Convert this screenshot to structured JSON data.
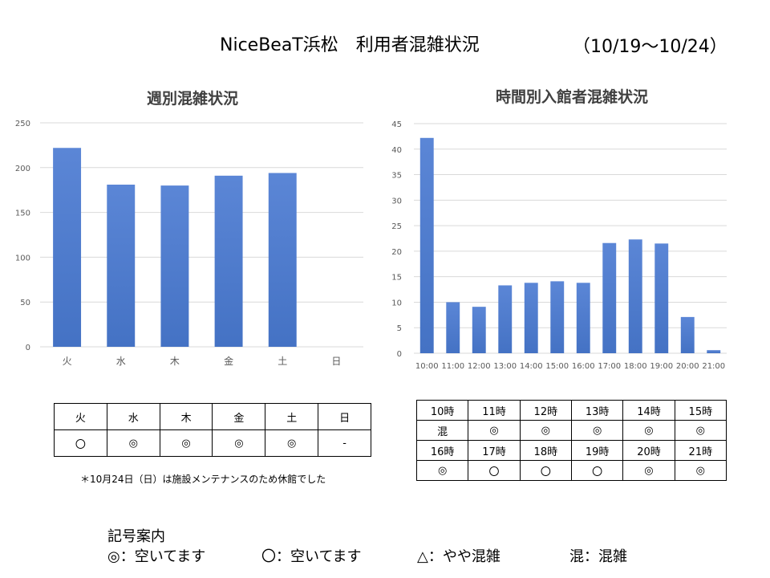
{
  "header": {
    "title": "NiceBeaT浜松　利用者混雑状況",
    "period": "（10/19～10/24）"
  },
  "colors": {
    "bar": "#4472c4",
    "bar_light": "#5b86d6",
    "grid": "#d9d9d9",
    "axis_text": "#595959"
  },
  "chart_data": [
    {
      "type": "bar",
      "title": "週別混雑状況",
      "categories": [
        "火",
        "水",
        "木",
        "金",
        "土",
        "日"
      ],
      "values": [
        222,
        181,
        180,
        191,
        194,
        0
      ],
      "xlabel": "",
      "ylabel": "",
      "ylim": [
        0,
        250
      ],
      "yticks": [
        0,
        50,
        100,
        150,
        200,
        250
      ],
      "grid": true,
      "legend": "none"
    },
    {
      "type": "bar",
      "title": "時間別入館者混雑状況",
      "categories": [
        "10:00",
        "11:00",
        "12:00",
        "13:00",
        "14:00",
        "15:00",
        "16:00",
        "17:00",
        "18:00",
        "19:00",
        "20:00",
        "21:00"
      ],
      "values": [
        42.2,
        10.0,
        9.1,
        13.3,
        13.8,
        14.1,
        13.8,
        21.6,
        22.3,
        21.5,
        7.1,
        0.6
      ],
      "xlabel": "",
      "ylabel": "",
      "ylim": [
        0,
        45
      ],
      "yticks": [
        0,
        5,
        10,
        15,
        20,
        25,
        30,
        35,
        40,
        45
      ],
      "grid": true,
      "legend": "none"
    }
  ],
  "weekly_table": {
    "days": [
      "火",
      "水",
      "木",
      "金",
      "土",
      "日"
    ],
    "marks": [
      "〇",
      "◎",
      "◎",
      "◎",
      "◎",
      "-"
    ]
  },
  "hourly_table": {
    "rows": [
      [
        "10時",
        "11時",
        "12時",
        "13時",
        "14時",
        "15時"
      ],
      [
        "混",
        "◎",
        "◎",
        "◎",
        "◎",
        "◎"
      ],
      [
        "16時",
        "17時",
        "18時",
        "19時",
        "20時",
        "21時"
      ],
      [
        "◎",
        "〇",
        "〇",
        "〇",
        "◎",
        "◎"
      ]
    ]
  },
  "note": "＊10月24日（日）は施設メンテナンスのため休館でした",
  "legend": {
    "heading": "記号案内",
    "items": [
      "◎：空いてます",
      "〇：空いてます",
      "△：やや混雑",
      "混：混雑"
    ]
  }
}
